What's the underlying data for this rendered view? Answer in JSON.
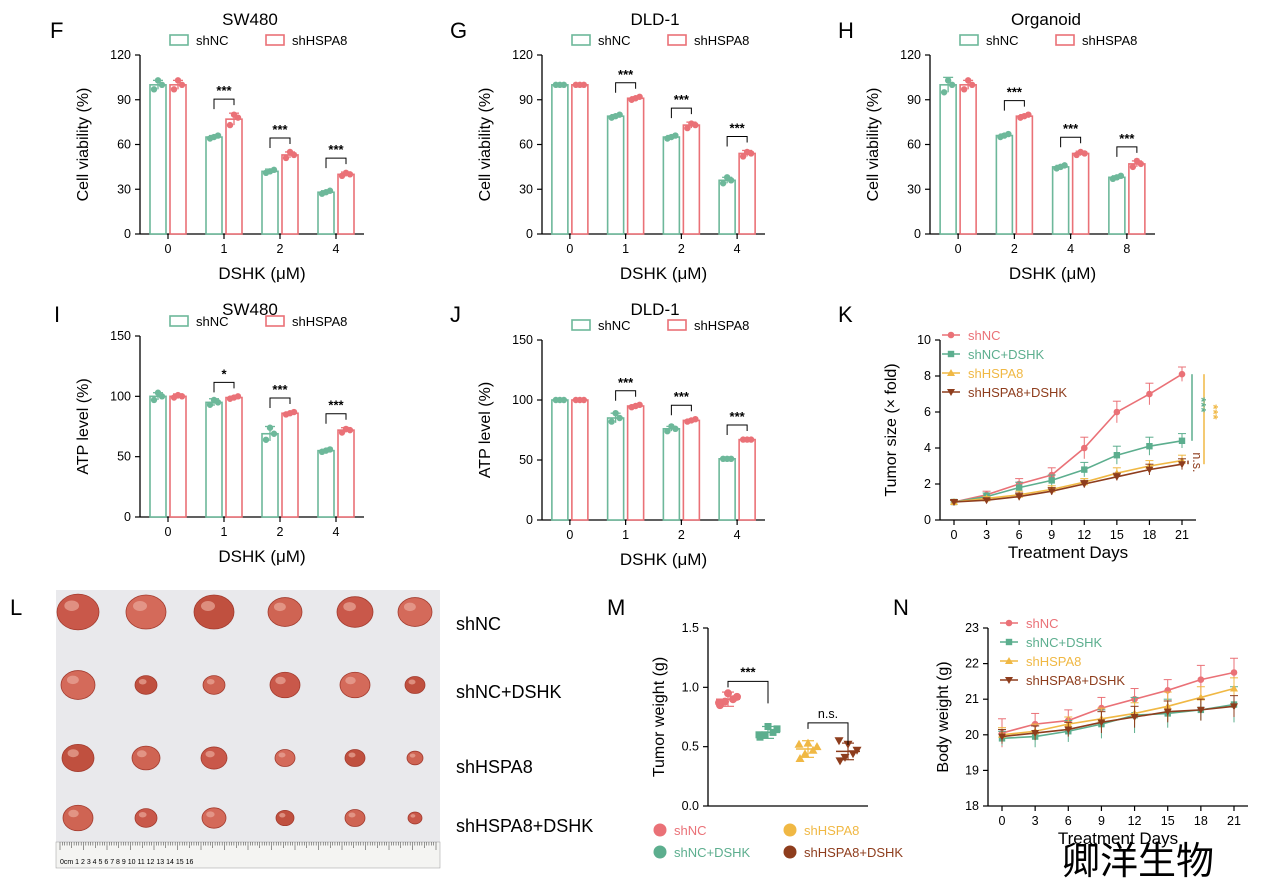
{
  "watermark": "卿洋生物",
  "colors": {
    "shNC": "#6db89a",
    "shHSPA8": "#ea7177",
    "shNC+DSHK": "#5cae8e",
    "shHSPA8+DSHK": "#8e3d1d",
    "shHSPA8_yellow": "#f0b844",
    "photo_bg": "#e9e9ec"
  },
  "panels_text": {
    "F": "F",
    "G": "G",
    "H": "H",
    "I": "I",
    "J": "J",
    "K": "K",
    "L": "L",
    "M": "M",
    "N": "N"
  },
  "photo": {
    "labels": [
      "shNC",
      "shNC+DSHK",
      "shHSPA8",
      "shHSPA8+DSHK"
    ],
    "ruler_text": "0cm  1   2   3   4   5   6   7   8   9  10  11  12  13  14  15  16"
  },
  "chart_data": [
    {
      "id": "F",
      "type": "bar",
      "title": "SW480",
      "xlabel": "DSHK (μM)",
      "ylabel": "Cell viability (%)",
      "categories": [
        "0",
        "1",
        "2",
        "4"
      ],
      "ylim": [
        0,
        120
      ],
      "yticks": [
        0,
        30,
        60,
        90,
        120
      ],
      "series": [
        {
          "name": "shNC",
          "values": [
            100,
            65,
            42,
            28
          ],
          "errors": [
            3,
            1,
            1.5,
            1
          ],
          "points": [
            [
              97,
              103,
              100
            ],
            [
              64,
              65,
              66
            ],
            [
              41,
              42,
              43
            ],
            [
              27,
              28,
              29
            ]
          ]
        },
        {
          "name": "shHSPA8",
          "values": [
            100,
            77,
            53,
            40
          ],
          "errors": [
            3,
            4,
            2,
            1.5
          ],
          "points": [
            [
              97,
              103,
              100
            ],
            [
              73,
              80,
              78
            ],
            [
              51,
              55,
              53
            ],
            [
              39,
              41,
              40
            ]
          ]
        }
      ],
      "significance": [
        "",
        "***",
        "***",
        "***"
      ]
    },
    {
      "id": "G",
      "type": "bar",
      "title": "DLD-1",
      "xlabel": "DSHK (μM)",
      "ylabel": "Cell viability (%)",
      "categories": [
        "0",
        "1",
        "2",
        "4"
      ],
      "ylim": [
        0,
        120
      ],
      "yticks": [
        0,
        30,
        60,
        90,
        120
      ],
      "series": [
        {
          "name": "shNC",
          "values": [
            100,
            79,
            65,
            36
          ],
          "errors": [
            0.5,
            1,
            1,
            2
          ],
          "points": [
            [
              100,
              100,
              100
            ],
            [
              78,
              79,
              80
            ],
            [
              64,
              65,
              66
            ],
            [
              34,
              38,
              36
            ]
          ]
        },
        {
          "name": "shHSPA8",
          "values": [
            100,
            91,
            73,
            54
          ],
          "errors": [
            0.5,
            1,
            2,
            2
          ],
          "points": [
            [
              100,
              100,
              100
            ],
            [
              90,
              91,
              92
            ],
            [
              71,
              74,
              73
            ],
            [
              52,
              55,
              54
            ]
          ]
        }
      ],
      "significance": [
        "",
        "***",
        "***",
        "***"
      ]
    },
    {
      "id": "H",
      "type": "bar",
      "title": "Organoid",
      "xlabel": "DSHK (μM)",
      "ylabel": "Cell viability (%)",
      "categories": [
        "0",
        "2",
        "4",
        "8"
      ],
      "ylim": [
        0,
        120
      ],
      "yticks": [
        0,
        30,
        60,
        90,
        120
      ],
      "series": [
        {
          "name": "shNC",
          "values": [
            100,
            66,
            45,
            38
          ],
          "errors": [
            5,
            1,
            1,
            1
          ],
          "points": [
            [
              95,
              103,
              100
            ],
            [
              65,
              66,
              67
            ],
            [
              44,
              45,
              46
            ],
            [
              37,
              38,
              39
            ]
          ]
        },
        {
          "name": "shHSPA8",
          "values": [
            100,
            79,
            54,
            47
          ],
          "errors": [
            3,
            1,
            1.5,
            2
          ],
          "points": [
            [
              97,
              103,
              100
            ],
            [
              78,
              79,
              80
            ],
            [
              53,
              55,
              54
            ],
            [
              45,
              49,
              47
            ]
          ]
        }
      ],
      "significance": [
        "",
        "***",
        "***",
        "***"
      ]
    },
    {
      "id": "I",
      "type": "bar",
      "title": "SW480",
      "xlabel": "DSHK (μM)",
      "ylabel": "ATP level (%)",
      "categories": [
        "0",
        "1",
        "2",
        "4"
      ],
      "ylim": [
        0,
        150
      ],
      "yticks": [
        0,
        50,
        100,
        150
      ],
      "series": [
        {
          "name": "shNC",
          "values": [
            100,
            95,
            69,
            55
          ],
          "errors": [
            3,
            3,
            6,
            1
          ],
          "points": [
            [
              97,
              103,
              100
            ],
            [
              93,
              97,
              95
            ],
            [
              64,
              74,
              69
            ],
            [
              54,
              55,
              56
            ]
          ]
        },
        {
          "name": "shHSPA8",
          "values": [
            100,
            99,
            86,
            72
          ],
          "errors": [
            2,
            1,
            1,
            2
          ],
          "points": [
            [
              99,
              101,
              100
            ],
            [
              98,
              99,
              100
            ],
            [
              85,
              86,
              87
            ],
            [
              70,
              73,
              72
            ]
          ]
        }
      ],
      "significance": [
        "",
        "*",
        "***",
        "***"
      ]
    },
    {
      "id": "J",
      "type": "bar",
      "title": "DLD-1",
      "xlabel": "DSHK (μM)",
      "ylabel": "ATP level (%)",
      "categories": [
        "0",
        "1",
        "2",
        "4"
      ],
      "ylim": [
        0,
        150
      ],
      "yticks": [
        0,
        50,
        100,
        150
      ],
      "series": [
        {
          "name": "shNC",
          "values": [
            100,
            85,
            76,
            51
          ],
          "errors": [
            0.5,
            4,
            2,
            0.5
          ],
          "points": [
            [
              100,
              100,
              100
            ],
            [
              82,
              89,
              85
            ],
            [
              74,
              78,
              76
            ],
            [
              51,
              51,
              51
            ]
          ]
        },
        {
          "name": "shHSPA8",
          "values": [
            100,
            95,
            83,
            67
          ],
          "errors": [
            0.5,
            1,
            1,
            0.5
          ],
          "points": [
            [
              100,
              100,
              100
            ],
            [
              94,
              95,
              96
            ],
            [
              82,
              83,
              84
            ],
            [
              67,
              67,
              67
            ]
          ]
        }
      ],
      "significance": [
        "",
        "***",
        "***",
        "***"
      ]
    },
    {
      "id": "K",
      "type": "line",
      "xlabel": "Treatment Days",
      "ylabel": "Tumor size (× fold)",
      "x": [
        0,
        3,
        6,
        9,
        12,
        15,
        18,
        21
      ],
      "ylim": [
        0,
        10
      ],
      "yticks": [
        0,
        2,
        4,
        6,
        8,
        10
      ],
      "series": [
        {
          "name": "shNC",
          "values": [
            1.0,
            1.4,
            2.0,
            2.5,
            4.0,
            6.0,
            7.0,
            8.1
          ],
          "errors": [
            0.1,
            0.2,
            0.3,
            0.4,
            0.6,
            0.6,
            0.6,
            0.4
          ]
        },
        {
          "name": "shNC+DSHK",
          "values": [
            1.0,
            1.3,
            1.8,
            2.2,
            2.8,
            3.6,
            4.1,
            4.4
          ],
          "errors": [
            0.1,
            0.2,
            0.3,
            0.3,
            0.4,
            0.5,
            0.5,
            0.4
          ]
        },
        {
          "name": "shHSPA8",
          "values": [
            1.0,
            1.2,
            1.4,
            1.7,
            2.1,
            2.6,
            3.0,
            3.3
          ],
          "errors": [
            0.1,
            0.1,
            0.2,
            0.2,
            0.2,
            0.3,
            0.3,
            0.3
          ]
        },
        {
          "name": "shHSPA8+DSHK",
          "values": [
            1.0,
            1.1,
            1.3,
            1.6,
            2.0,
            2.4,
            2.8,
            3.1
          ],
          "errors": [
            0.1,
            0.1,
            0.2,
            0.2,
            0.2,
            0.2,
            0.3,
            0.3
          ]
        }
      ],
      "annotations": [
        "***",
        "***",
        "n.s."
      ]
    },
    {
      "id": "M",
      "type": "scatter",
      "ylabel": "Tumor weight (g)",
      "categories": [
        "shNC",
        "shNC+DSHK",
        "shHSPA8",
        "shHSPA8+DSHK"
      ],
      "ylim": [
        0,
        1.5
      ],
      "yticks": [
        0.0,
        0.5,
        1.0,
        1.5
      ],
      "means": [
        0.9,
        0.62,
        0.48,
        0.46
      ],
      "sd": [
        0.06,
        0.05,
        0.07,
        0.07
      ],
      "points": [
        [
          0.85,
          0.88,
          0.9,
          0.92,
          0.95,
          0.87
        ],
        [
          0.58,
          0.6,
          0.62,
          0.65,
          0.67,
          0.6
        ],
        [
          0.4,
          0.44,
          0.47,
          0.5,
          0.53,
          0.52
        ],
        [
          0.38,
          0.41,
          0.44,
          0.47,
          0.52,
          0.55
        ]
      ],
      "significance": [
        [
          "shNC",
          "shNC+DSHK",
          "***"
        ],
        [
          "shHSPA8",
          "shHSPA8+DSHK",
          "n.s."
        ]
      ]
    },
    {
      "id": "N",
      "type": "line",
      "xlabel": "Treatment Days",
      "ylabel": "Body weight (g)",
      "x": [
        0,
        3,
        6,
        9,
        12,
        15,
        18,
        21
      ],
      "ylim": [
        18,
        23
      ],
      "yticks": [
        18,
        19,
        20,
        21,
        22,
        23
      ],
      "series": [
        {
          "name": "shNC",
          "values": [
            20.05,
            20.3,
            20.4,
            20.75,
            21.0,
            21.25,
            21.55,
            21.75
          ],
          "errors": [
            0.4,
            0.3,
            0.3,
            0.3,
            0.3,
            0.3,
            0.4,
            0.4
          ]
        },
        {
          "name": "shNC+DSHK",
          "values": [
            19.9,
            19.95,
            20.1,
            20.3,
            20.55,
            20.6,
            20.7,
            20.85
          ],
          "errors": [
            0.2,
            0.3,
            0.3,
            0.4,
            0.5,
            0.4,
            0.3,
            0.5
          ]
        },
        {
          "name": "shHSPA8",
          "values": [
            20.0,
            20.1,
            20.3,
            20.45,
            20.6,
            20.8,
            21.05,
            21.3
          ],
          "errors": [
            0.2,
            0.2,
            0.2,
            0.3,
            0.3,
            0.4,
            0.3,
            0.3
          ]
        },
        {
          "name": "shHSPA8+DSHK",
          "values": [
            19.95,
            20.05,
            20.15,
            20.35,
            20.5,
            20.65,
            20.7,
            20.8
          ],
          "errors": [
            0.2,
            0.2,
            0.2,
            0.3,
            0.3,
            0.3,
            0.3,
            0.3
          ]
        }
      ]
    }
  ]
}
